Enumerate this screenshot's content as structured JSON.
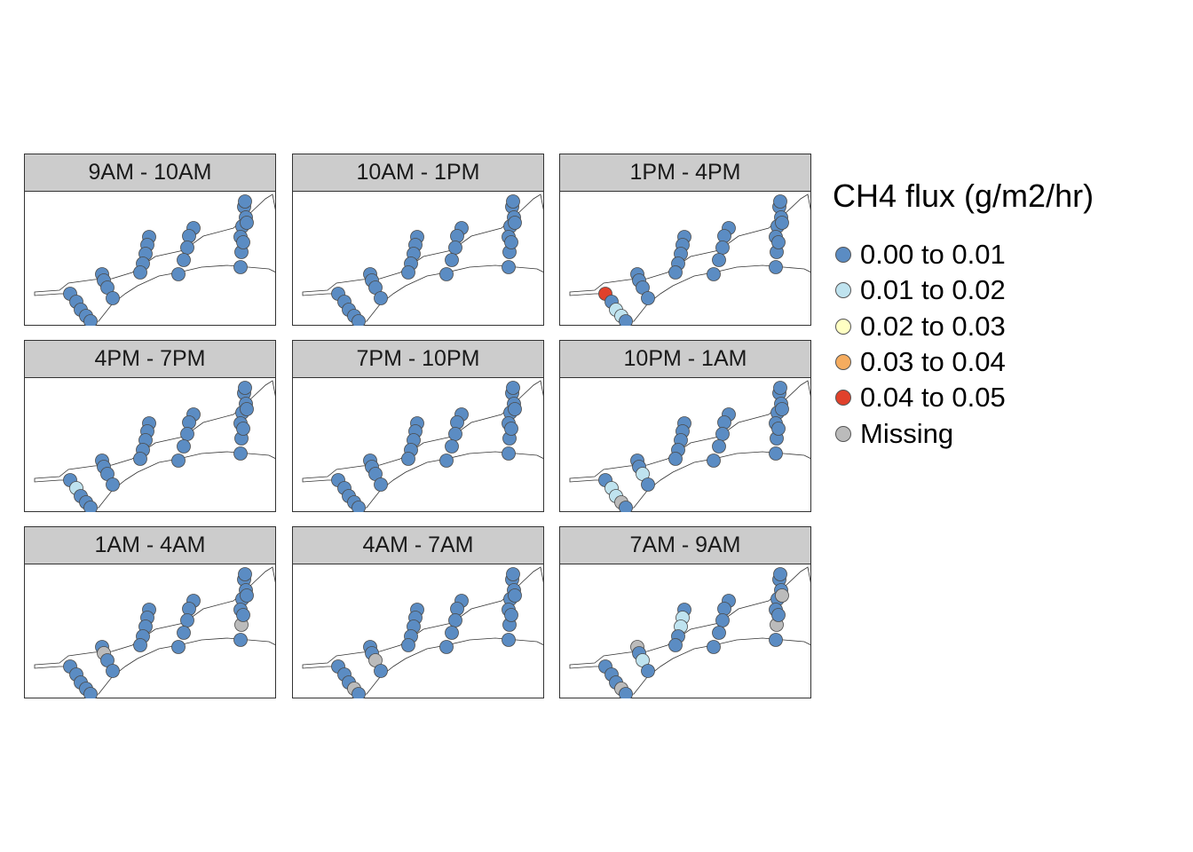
{
  "legend": {
    "title": "CH4 flux (g/m2/hr)",
    "items": [
      {
        "label": "0.00 to 0.01",
        "color": "#5b8cc3"
      },
      {
        "label": "0.01 to 0.02",
        "color": "#bfe3ef"
      },
      {
        "label": "0.02 to 0.03",
        "color": "#ffffc3"
      },
      {
        "label": "0.03 to 0.04",
        "color": "#f5ac5f"
      },
      {
        "label": "0.04 to 0.05",
        "color": "#e0412b"
      },
      {
        "label": "Missing",
        "color": "#bbbbbb"
      }
    ]
  },
  "panels": [
    {
      "title": "9AM - 10AM",
      "points": [
        0,
        0,
        0,
        0,
        0,
        0,
        0,
        0,
        0,
        0,
        0,
        0,
        0,
        0,
        0,
        0,
        0,
        0,
        0,
        0,
        0,
        0,
        0,
        0,
        0,
        0,
        0,
        0
      ]
    },
    {
      "title": "10AM - 1PM",
      "points": [
        0,
        0,
        0,
        0,
        0,
        0,
        0,
        0,
        0,
        0,
        0,
        0,
        0,
        0,
        0,
        0,
        0,
        0,
        0,
        0,
        0,
        0,
        0,
        0,
        0,
        0,
        0,
        0
      ]
    },
    {
      "title": "1PM - 4PM",
      "points": [
        4,
        0,
        1,
        1,
        0,
        0,
        0,
        0,
        0,
        0,
        0,
        0,
        0,
        0,
        0,
        0,
        0,
        0,
        0,
        0,
        0,
        0,
        0,
        0,
        0,
        0,
        0,
        0
      ]
    },
    {
      "title": "4PM - 7PM",
      "points": [
        0,
        1,
        0,
        0,
        0,
        0,
        0,
        0,
        0,
        0,
        0,
        0,
        0,
        0,
        0,
        0,
        0,
        0,
        0,
        0,
        0,
        0,
        0,
        0,
        0,
        0,
        0,
        0
      ]
    },
    {
      "title": "7PM - 10PM",
      "points": [
        0,
        0,
        0,
        0,
        0,
        0,
        0,
        0,
        0,
        0,
        0,
        0,
        0,
        0,
        0,
        0,
        0,
        0,
        0,
        0,
        0,
        0,
        0,
        0,
        0,
        0,
        0,
        0
      ]
    },
    {
      "title": "10PM - 1AM",
      "points": [
        0,
        1,
        1,
        5,
        0,
        0,
        0,
        1,
        0,
        0,
        0,
        0,
        0,
        0,
        0,
        0,
        0,
        0,
        0,
        0,
        0,
        0,
        0,
        0,
        0,
        0,
        0,
        0
      ]
    },
    {
      "title": "1AM - 4AM",
      "points": [
        0,
        0,
        0,
        0,
        0,
        0,
        5,
        0,
        0,
        0,
        0,
        0,
        0,
        0,
        0,
        0,
        0,
        0,
        0,
        0,
        0,
        0,
        0,
        5,
        0,
        0,
        0,
        0
      ]
    },
    {
      "title": "4AM - 7AM",
      "points": [
        0,
        0,
        0,
        5,
        0,
        0,
        0,
        5,
        0,
        0,
        0,
        0,
        0,
        0,
        0,
        0,
        0,
        0,
        0,
        0,
        0,
        0,
        0,
        0,
        0,
        0,
        0,
        0
      ]
    },
    {
      "title": "7AM - 9AM",
      "points": [
        0,
        0,
        0,
        5,
        0,
        5,
        0,
        1,
        0,
        0,
        1,
        1,
        0,
        0,
        0,
        0,
        0,
        0,
        0,
        0,
        0,
        0,
        0,
        5,
        0,
        0,
        5,
        0
      ]
    }
  ]
}
